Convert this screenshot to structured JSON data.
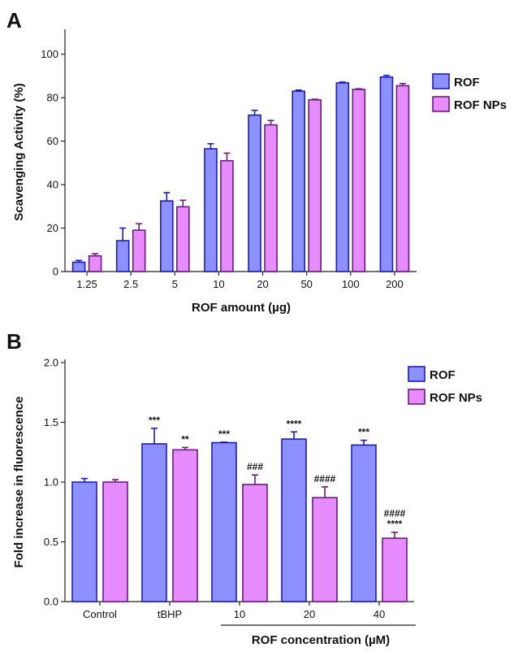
{
  "colors": {
    "ROF": "#8c91ff",
    "ROF_stroke": "#1d1db3",
    "ROF NPs": "#e68cff",
    "ROF_NPs_stroke": "#6e1a7a",
    "axis": "#222222"
  },
  "chart_data": [
    {
      "panel": "A",
      "type": "bar",
      "xlabel": "ROF amount (µg)",
      "ylabel": "Scavenging Activity (%)",
      "ylim": [
        0,
        110
      ],
      "yticks": [
        "0",
        "20",
        "40",
        "60",
        "80",
        "100"
      ],
      "categories": [
        "1.25",
        "2.5",
        "5",
        "10",
        "20",
        "50",
        "100",
        "200"
      ],
      "series": [
        {
          "name": "ROF",
          "values": [
            4.3,
            14.2,
            32.5,
            56.5,
            72.0,
            83.0,
            86.8,
            89.5
          ],
          "errors": [
            0.8,
            5.8,
            3.8,
            2.3,
            2.2,
            0.5,
            0.4,
            0.8
          ]
        },
        {
          "name": "ROF NPs",
          "values": [
            7.2,
            19.0,
            29.8,
            51.0,
            67.5,
            79.0,
            83.8,
            85.5
          ],
          "errors": [
            1.0,
            3.0,
            3.0,
            3.5,
            2.0,
            0.3,
            0.3,
            1.0
          ]
        }
      ],
      "legend": {
        "position": "right",
        "entries": [
          "ROF",
          "ROF NPs"
        ]
      }
    },
    {
      "panel": "B",
      "type": "bar",
      "xlabel": "ROF concentration (µM)",
      "ylabel": "Fold increase in fluorescence",
      "ylim": [
        0.0,
        2.0
      ],
      "yticks": [
        "0.0",
        "0.5",
        "1.0",
        "1.5",
        "2.0"
      ],
      "categories": [
        "Control",
        "tBHP",
        "10",
        "20",
        "40"
      ],
      "series": [
        {
          "name": "ROF",
          "values": [
            1.0,
            1.32,
            1.33,
            1.36,
            1.31
          ],
          "errors": [
            0.03,
            0.13,
            0.005,
            0.06,
            0.04
          ],
          "annotations": [
            "",
            "***",
            "***",
            "****",
            "***"
          ]
        },
        {
          "name": "ROF NPs",
          "values": [
            1.0,
            1.27,
            0.98,
            0.87,
            0.53
          ],
          "errors": [
            0.02,
            0.02,
            0.08,
            0.09,
            0.05
          ],
          "annotations": [
            "",
            "**",
            "###",
            "####",
            "####\n****"
          ]
        }
      ],
      "legend": {
        "position": "top-right",
        "entries": [
          "ROF",
          "ROF NPs"
        ]
      }
    }
  ]
}
